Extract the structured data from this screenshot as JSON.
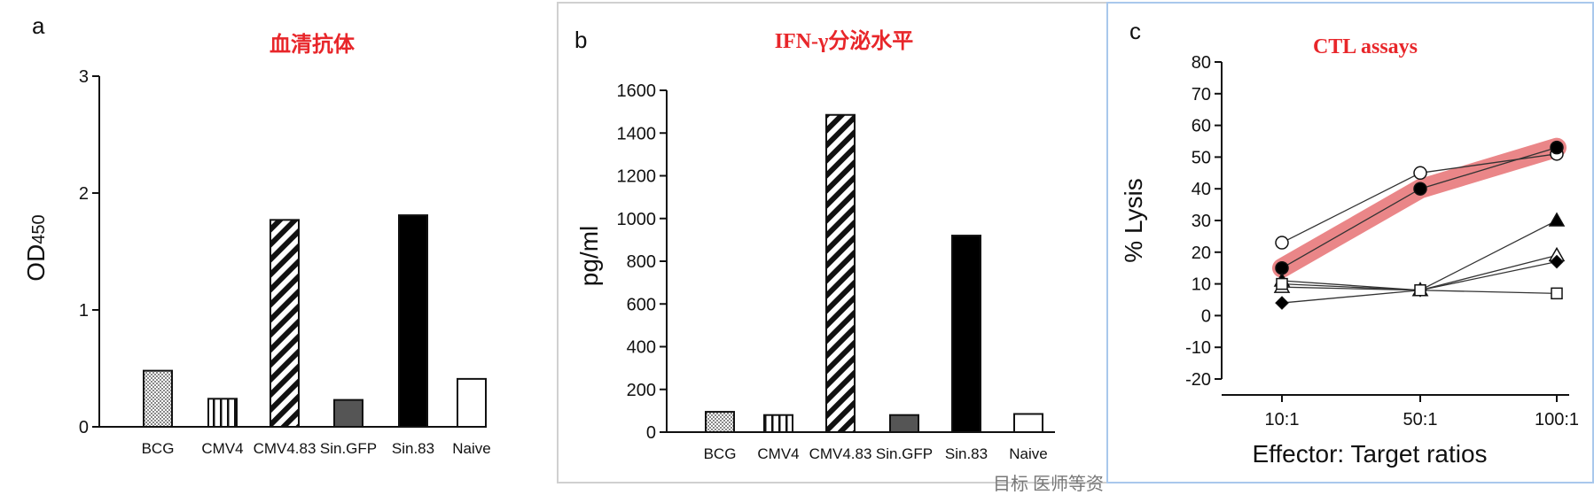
{
  "panels": {
    "a": {
      "letter": "a",
      "title": "血清抗体",
      "ylabel": "OD",
      "ylabel_sub": "450"
    },
    "b": {
      "letter": "b",
      "title": "IFN-γ分泌水平",
      "ylabel": "pg/ml"
    },
    "c": {
      "letter": "c",
      "title": "CTL assays",
      "ylabel": "% Lysis",
      "xlabel": "Effector: Target ratios"
    }
  },
  "footer_fragment": "目标  医师等资",
  "colors": {
    "title_red": "#e8262a",
    "highlight": "#e8797b",
    "panel_b_border": "#d0d0d0",
    "panel_c_border": "#a9c8ec"
  },
  "chart_data": [
    {
      "type": "bar",
      "title": "血清抗体",
      "ylabel": "OD450",
      "categories": [
        "BCG",
        "CMV4",
        "CMV4.83",
        "Sin.GFP",
        "Sin.83",
        "Naive"
      ],
      "values": [
        0.48,
        0.24,
        1.77,
        0.23,
        1.81,
        0.41
      ],
      "patterns": [
        "dots",
        "vertical-stripes",
        "diagonal-stripes",
        "dark-gray",
        "black",
        "white"
      ],
      "ylim": [
        0,
        3
      ],
      "yticks": [
        "0",
        "1",
        "2",
        "3"
      ]
    },
    {
      "type": "bar",
      "title": "IFN-γ分泌水平",
      "ylabel": "pg/ml",
      "categories": [
        "BCG",
        "CMV4",
        "CMV4.83",
        "Sin.GFP",
        "Sin.83",
        "Naive"
      ],
      "values": [
        95,
        80,
        1485,
        80,
        920,
        85
      ],
      "patterns": [
        "dots",
        "vertical-stripes",
        "diagonal-stripes",
        "dark-gray",
        "black",
        "white"
      ],
      "ylim": [
        0,
        1600
      ],
      "yticks": [
        "0",
        "200",
        "400",
        "600",
        "800",
        "1000",
        "1200",
        "1400",
        "1600"
      ]
    },
    {
      "type": "line",
      "title": "CTL assays",
      "xlabel": "Effector: Target ratios",
      "ylabel": "% Lysis",
      "categories": [
        "10:1",
        "50:1",
        "100:1"
      ],
      "ylim": [
        -20,
        80
      ],
      "yticks": [
        "-20",
        "-10",
        "0",
        "10",
        "20",
        "30",
        "40",
        "50",
        "60",
        "70",
        "80"
      ],
      "highlighted_series_index": 1,
      "series": [
        {
          "marker": "open-circle",
          "values": [
            23,
            45,
            51
          ]
        },
        {
          "marker": "filled-circle",
          "values": [
            15,
            40,
            53
          ]
        },
        {
          "marker": "filled-triangle",
          "values": [
            11,
            8,
            30
          ]
        },
        {
          "marker": "open-triangle",
          "values": [
            9,
            8,
            19
          ]
        },
        {
          "marker": "filled-diamond",
          "values": [
            4,
            8,
            17
          ]
        },
        {
          "marker": "open-square",
          "values": [
            10,
            8,
            7
          ]
        }
      ]
    }
  ]
}
